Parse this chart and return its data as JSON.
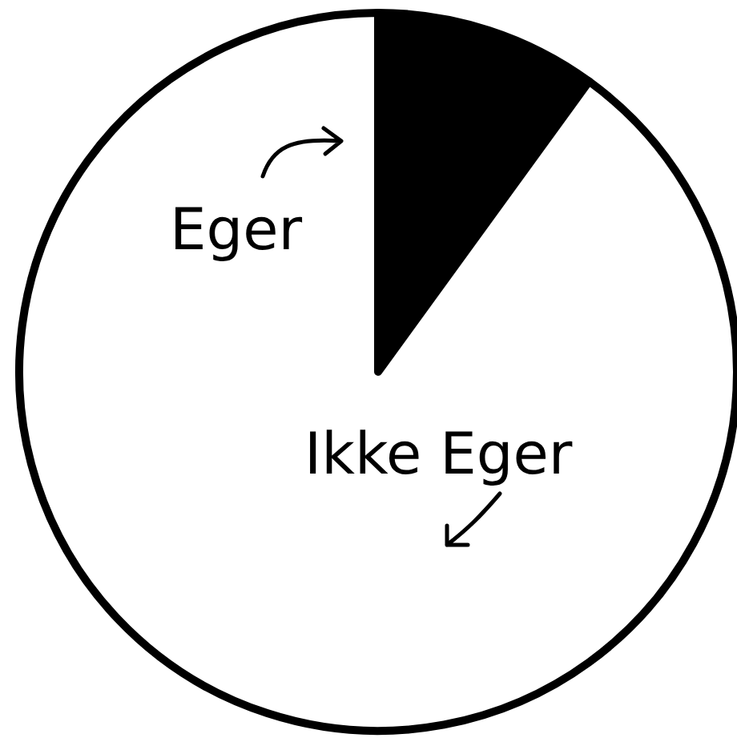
{
  "chart_data": {
    "type": "pie",
    "categories": [
      "Eger",
      "Ikke Eger"
    ],
    "values": [
      10,
      90
    ],
    "colors": [
      "#000000",
      "#ffffff"
    ]
  }
}
